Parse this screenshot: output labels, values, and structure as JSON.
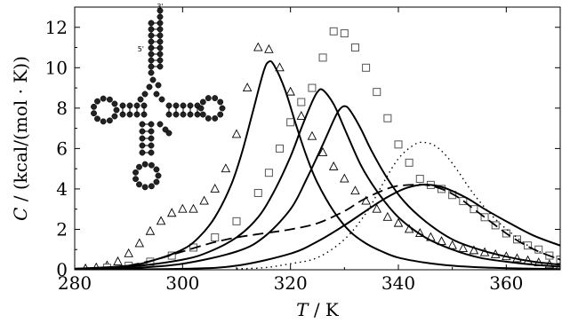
{
  "chart_data": {
    "type": "line",
    "xlabel_italic": "T",
    "xlabel_rest": " / K",
    "ylabel_italic": "C",
    "ylabel_rest": " / (kcal/(mol · K))",
    "xlim": [
      280,
      370
    ],
    "ylim": [
      0,
      13
    ],
    "xticks": [
      280,
      300,
      320,
      340,
      360
    ],
    "yticks": [
      0,
      2,
      4,
      6,
      8,
      10,
      12
    ],
    "grid": false,
    "legend": "none",
    "inset": {
      "type": "tRNA cloverleaf secondary structure",
      "labels": [
        "3'",
        "5'"
      ]
    },
    "series": [
      {
        "style": "triangle-markers",
        "x": [
          282,
          284,
          286,
          288,
          290,
          292,
          294,
          296,
          298,
          300,
          302,
          304,
          306,
          308,
          310,
          312,
          314,
          316,
          318,
          320,
          322,
          324,
          326,
          328,
          330,
          332,
          334,
          336,
          338,
          340,
          342,
          344,
          346,
          348,
          350,
          352,
          354,
          356,
          358,
          360,
          362,
          364,
          366,
          368,
          370
        ],
        "y": [
          0.05,
          0.1,
          0.2,
          0.4,
          0.8,
          1.3,
          1.9,
          2.4,
          2.8,
          3.0,
          3.0,
          3.4,
          4.0,
          5.0,
          6.7,
          9.0,
          11.0,
          10.9,
          10.0,
          8.8,
          7.6,
          6.6,
          5.8,
          5.1,
          4.5,
          3.9,
          3.4,
          3.0,
          2.6,
          2.3,
          2.0,
          1.8,
          1.6,
          1.4,
          1.2,
          1.05,
          0.95,
          0.85,
          0.75,
          0.65,
          0.55,
          0.45,
          0.35,
          0.25,
          0.2
        ]
      },
      {
        "style": "square-markers",
        "x": [
          286,
          290,
          294,
          298,
          302,
          306,
          310,
          314,
          316,
          318,
          320,
          322,
          324,
          326,
          328,
          330,
          332,
          334,
          336,
          338,
          340,
          342,
          344,
          346,
          348,
          350,
          352,
          354,
          356,
          358,
          360,
          362,
          364,
          366,
          368,
          370
        ],
        "y": [
          0.1,
          0.2,
          0.4,
          0.7,
          1.1,
          1.6,
          2.4,
          3.8,
          4.8,
          6.0,
          7.3,
          8.3,
          9.0,
          10.5,
          11.8,
          11.7,
          11.0,
          10.0,
          8.8,
          7.5,
          6.2,
          5.3,
          4.5,
          4.2,
          4.0,
          3.7,
          3.4,
          3.0,
          2.6,
          2.2,
          1.8,
          1.5,
          1.2,
          1.0,
          0.7,
          0.5
        ]
      },
      {
        "style": "solid",
        "x": [
          280,
          290,
          295,
          300,
          303,
          306,
          309,
          311,
          313,
          315,
          316,
          317,
          319,
          321,
          323,
          325,
          328,
          331,
          334,
          337,
          340,
          345,
          350,
          355,
          360,
          370
        ],
        "y": [
          0.05,
          0.2,
          0.5,
          1.0,
          1.6,
          2.6,
          4.2,
          5.8,
          7.8,
          9.8,
          10.3,
          10.1,
          8.9,
          7.2,
          5.6,
          4.3,
          2.9,
          1.9,
          1.3,
          0.9,
          0.6,
          0.35,
          0.2,
          0.12,
          0.08,
          0.03
        ]
      },
      {
        "style": "solid",
        "x": [
          280,
          290,
          300,
          305,
          310,
          314,
          317,
          320,
          322,
          324,
          325,
          326,
          328,
          330,
          333,
          336,
          340,
          345,
          350,
          355,
          360,
          365,
          370
        ],
        "y": [
          0.05,
          0.15,
          0.5,
          0.9,
          1.6,
          2.6,
          3.9,
          5.6,
          7.0,
          8.3,
          8.8,
          8.9,
          8.2,
          7.0,
          5.2,
          3.9,
          2.6,
          1.6,
          1.0,
          0.6,
          0.4,
          0.25,
          0.15
        ]
      },
      {
        "style": "solid",
        "x": [
          280,
          290,
          300,
          310,
          315,
          320,
          323,
          326,
          328,
          329,
          330,
          331,
          333,
          335,
          338,
          341,
          345,
          350,
          355,
          360,
          365,
          370
        ],
        "y": [
          0.03,
          0.08,
          0.3,
          0.9,
          1.6,
          3.0,
          4.5,
          6.2,
          7.4,
          7.9,
          8.1,
          7.9,
          7.0,
          5.9,
          4.5,
          3.4,
          2.4,
          1.5,
          1.0,
          0.65,
          0.4,
          0.25
        ]
      },
      {
        "style": "solid",
        "x": [
          280,
          300,
          310,
          320,
          325,
          330,
          335,
          338,
          341,
          344,
          346,
          348,
          350,
          353,
          356,
          360,
          365,
          370
        ],
        "y": [
          0.0,
          0.05,
          0.2,
          0.8,
          1.4,
          2.2,
          3.1,
          3.6,
          4.0,
          4.2,
          4.2,
          4.1,
          3.9,
          3.5,
          3.0,
          2.4,
          1.7,
          1.2
        ]
      },
      {
        "style": "dashed",
        "x": [
          290,
          295,
          300,
          305,
          310,
          315,
          320,
          325,
          330,
          333,
          336,
          339,
          342,
          345,
          348,
          351,
          354,
          357,
          360,
          363,
          366,
          370
        ],
        "y": [
          0.2,
          0.5,
          0.9,
          1.3,
          1.6,
          1.8,
          2.0,
          2.3,
          2.9,
          3.4,
          3.8,
          4.1,
          4.2,
          4.2,
          4.0,
          3.6,
          3.0,
          2.4,
          1.8,
          1.3,
          0.9,
          0.5
        ]
      },
      {
        "style": "dotted",
        "x": [
          310,
          315,
          320,
          325,
          330,
          334,
          337,
          340,
          343,
          345,
          347,
          349,
          351,
          353,
          355,
          358,
          361,
          364,
          367,
          370
        ],
        "y": [
          0.05,
          0.1,
          0.3,
          0.6,
          1.5,
          2.8,
          4.2,
          5.5,
          6.2,
          6.3,
          6.1,
          5.6,
          4.9,
          4.1,
          3.4,
          2.5,
          1.8,
          1.2,
          0.8,
          0.5
        ]
      }
    ]
  }
}
